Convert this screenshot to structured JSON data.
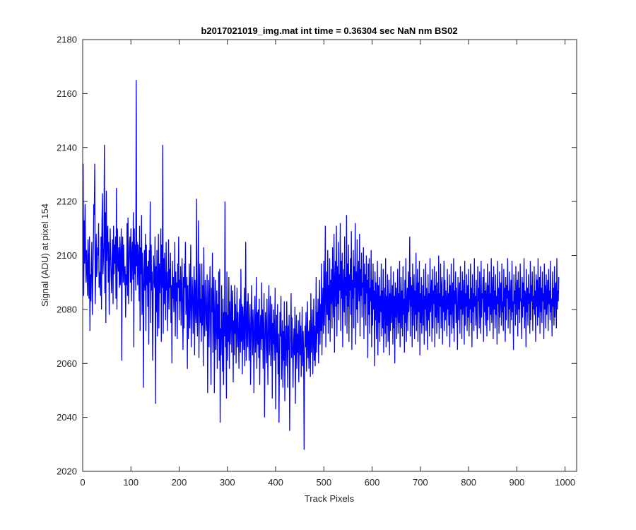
{
  "chart_data": {
    "type": "line",
    "title": "b2017021019_img.mat int time = 0.36304 sec  NaN nm BS02",
    "xlabel": "Track Pixels",
    "ylabel": "Signal (ADU) at pixel 154",
    "xlim": [
      0,
      1024
    ],
    "ylim": [
      2020,
      2180
    ],
    "xticks": [
      0,
      100,
      200,
      300,
      400,
      500,
      600,
      700,
      800,
      900,
      1000
    ],
    "xtick_labels": [
      "0",
      "100",
      "200",
      "300",
      "400",
      "500",
      "600",
      "700",
      "800",
      "900",
      "1000"
    ],
    "yticks": [
      2020,
      2040,
      2060,
      2080,
      2100,
      2120,
      2140,
      2160,
      2180
    ],
    "ytick_labels": [
      "2020",
      "2040",
      "2060",
      "2080",
      "2100",
      "2120",
      "2140",
      "2160",
      "2180"
    ],
    "grid": false,
    "legend": "none",
    "colors": {
      "series": "#0000ff",
      "axes": "#262626",
      "background": "#ffffff"
    },
    "series": [
      {
        "x_start": 1,
        "x_step": 1,
        "values": [
          2134,
          2085,
          2113,
          2097,
          2119,
          2100,
          2090,
          2102,
          2095,
          2085,
          2106,
          2098,
          2084,
          2107,
          2072,
          2093,
          2083,
          2097,
          2105,
          2078,
          2090,
          2101,
          2119,
          2115,
          2134,
          2082,
          2093,
          2108,
          2092,
          2095,
          2103,
          2100,
          2112,
          2088,
          2091,
          2094,
          2085,
          2107,
          2080,
          2113,
          2123,
          2093,
          2098,
          2105,
          2141,
          2086,
          2116,
          2075,
          2124,
          2098,
          2106,
          2111,
          2090,
          2105,
          2078,
          2096,
          2110,
          2100,
          2092,
          2086,
          2099,
          2106,
          2082,
          2111,
          2093,
          2104,
          2097,
          2107,
          2084,
          2125,
          2080,
          2110,
          2098,
          2094,
          2103,
          2088,
          2107,
          2089,
          2098,
          2110,
          2061,
          2102,
          2107,
          2090,
          2104,
          2094,
          2089,
          2096,
          2077,
          2093,
          2089,
          2112,
          2085,
          2114,
          2082,
          2097,
          2104,
          2107,
          2090,
          2110,
          2083,
          2100,
          2105,
          2091,
          2116,
          2066,
          2110,
          2093,
          2104,
          2087,
          2165,
          2096,
          2105,
          2089,
          2104,
          2098,
          2083,
          2111,
          2072,
          2103,
          2093,
          2115,
          2078,
          2101,
          2089,
          2051,
          2094,
          2102,
          2087,
          2108,
          2072,
          2104,
          2089,
          2096,
          2081,
          2098,
          2067,
          2102,
          2090,
          2120,
          2075,
          2104,
          2087,
          2094,
          2061,
          2082,
          2100,
          2091,
          2088,
          2107,
          2045,
          2096,
          2079,
          2102,
          2070,
          2089,
          2108,
          2073,
          2097,
          2086,
          2093,
          2110,
          2068,
          2104,
          2088,
          2141,
          2071,
          2099,
          2082,
          2101,
          2088,
          2076,
          2105,
          2087,
          2094,
          2072,
          2087,
          2106,
          2080,
          2095,
          2088,
          2101,
          2075,
          2089,
          2060,
          2098,
          2084,
          2092,
          2079,
          2087,
          2105,
          2070,
          2094,
          2083,
          2090,
          2069,
          2097,
          2088,
          2107,
          2076,
          2091,
          2083,
          2096,
          2074,
          2087,
          2099,
          2079,
          2065,
          2092,
          2073,
          2097,
          2088,
          2105,
          2078,
          2084,
          2092,
          2058,
          2089,
          2069,
          2079,
          2097,
          2073,
          2085,
          2104,
          2066,
          2079,
          2092,
          2084,
          2071,
          2087,
          2096,
          2063,
          2091,
          2081,
          2075,
          2121,
          2079,
          2070,
          2086,
          2113,
          2062,
          2081,
          2097,
          2075,
          2084,
          2068,
          2097,
          2074,
          2089,
          2059,
          2103,
          2080,
          2070,
          2091,
          2084,
          2072,
          2078,
          2093,
          2049,
          2079,
          2091,
          2066,
          2085,
          2096,
          2071,
          2052,
          2088,
          2079,
          2101,
          2064,
          2082,
          2092,
          2049,
          2077,
          2091,
          2065,
          2074,
          2087,
          2058,
          2082,
          2069,
          2094,
          2061,
          2095,
          2038,
          2073,
          2063,
          2089,
          2071,
          2057,
          2084,
          2052,
          2079,
          2070,
          2120,
          2066,
          2079,
          2047,
          2094,
          2061,
          2078,
          2068,
          2092,
          2058,
          2083,
          2067,
          2075,
          2089,
          2064,
          2080,
          2087,
          2053,
          2076,
          2063,
          2089,
          2071,
          2082,
          2060,
          2074,
          2088,
          2066,
          2079,
          2070,
          2058,
          2084,
          2073,
          2064,
          2095,
          2068,
          2082,
          2056,
          2081,
          2074,
          2065,
          2088,
          2059,
          2077,
          2105,
          2061,
          2072,
          2083,
          2066,
          2086,
          2076,
          2061,
          2074,
          2082,
          2052,
          2067,
          2089,
          2074,
          2063,
          2080,
          2071,
          2049,
          2076,
          2085,
          2064,
          2070,
          2092,
          2058,
          2079,
          2067,
          2080,
          2062,
          2084,
          2052,
          2072,
          2078,
          2065,
          2090,
          2069,
          2080,
          2058,
          2073,
          2086,
          2040,
          2066,
          2079,
          2074,
          2060,
          2084,
          2068,
          2052,
          2077,
          2089,
          2063,
          2072,
          2085,
          2059,
          2070,
          2082,
          2047,
          2075,
          2067,
          2080,
          2061,
          2073,
          2088,
          2043,
          2068,
          2078,
          2064,
          2082,
          2056,
          2071,
          2038,
          2063,
          2079,
          2070,
          2085,
          2054,
          2067,
          2076,
          2051,
          2072,
          2061,
          2083,
          2046,
          2067,
          2074,
          2059,
          2083,
          2069,
          2051,
          2074,
          2065,
          2078,
          2035,
          2061,
          2071,
          2086,
          2062,
          2077,
          2068,
          2051,
          2065,
          2073,
          2063,
          2081,
          2045,
          2069,
          2078,
          2058,
          2071,
          2064,
          2076,
          2053,
          2068,
          2079,
          2063,
          2074,
          2055,
          2067,
          2081,
          2059,
          2072,
          2064,
          2028,
          2061,
          2074,
          2066,
          2079,
          2057,
          2069,
          2083,
          2062,
          2072,
          2058,
          2076,
          2068,
          2055,
          2086,
          2064,
          2070,
          2080,
          2056,
          2068,
          2084,
          2061,
          2074,
          2059,
          2070,
          2092,
          2064,
          2079,
          2071,
          2084,
          2060,
          2077,
          2091,
          2067,
          2082,
          2072,
          2097,
          2063,
          2080,
          2088,
          2071,
          2098,
          2074,
          2087,
          2111,
          2066,
          2082,
          2094,
          2078,
          2102,
          2071,
          2089,
          2076,
          2099,
          2068,
          2091,
          2082,
          2095,
          2073,
          2103,
          2085,
          2077,
          2108,
          2064,
          2090,
          2098,
          2081,
          2111,
          2070,
          2096,
          2082,
          2105,
          2076,
          2093,
          2087,
          2112,
          2072,
          2098,
          2084,
          2101,
          2066,
          2089,
          2095,
          2079,
          2107,
          2074,
          2092,
          2085,
          2115,
          2071,
          2097,
          2081,
          2104,
          2068,
          2093,
          2087,
          2099,
          2078,
          2109,
          2065,
          2091,
          2084,
          2102,
          2073,
          2096,
          2088,
          2112,
          2067,
          2094,
          2080,
          2106,
          2075,
          2090,
          2098,
          2083,
          2108,
          2070,
          2095,
          2085,
          2101,
          2077,
          2090,
          2088,
          2103,
          2069,
          2097,
          2082,
          2093,
          2074,
          2100,
          2086,
          2091,
          2062,
          2097,
          2078,
          2099,
          2071,
          2088,
          2083,
          2102,
          2066,
          2091,
          2074,
          2097,
          2080,
          2087,
          2059,
          2094,
          2076,
          2090,
          2069,
          2083,
          2098,
          2063,
          2089,
          2075,
          2092,
          2068,
          2085,
          2079,
          2097,
          2070,
          2087,
          2073,
          2095,
          2064,
          2082,
          2088,
          2071,
          2099,
          2066,
          2085,
          2074,
          2093,
          2068,
          2080,
          2091,
          2063,
          2086,
          2072,
          2096,
          2075,
          2081,
          2089,
          2067,
          2094,
          2073,
          2085,
          2060,
          2090,
          2077,
          2088,
          2069,
          2083,
          2095,
          2071,
          2086,
          2075,
          2098,
          2066,
          2081,
          2092,
          2073,
          2087,
          2070,
          2096,
          2078,
          2084,
          2064,
          2091,
          2075,
          2099,
          2068,
          2083,
          2088,
          2072,
          2094,
          2079,
          2086,
          2107,
          2070,
          2092,
          2081,
          2089,
          2066,
          2097,
          2074,
          2085,
          2093,
          2069,
          2087,
          2078,
          2101,
          2072,
          2083,
          2095,
          2068,
          2090,
          2079,
          2098,
          2063,
          2086,
          2075,
          2092,
          2071,
          2081,
          2089,
          2074,
          2095,
          2067,
          2085,
          2080,
          2097,
          2072,
          2088,
          2083,
          2065,
          2093,
          2076,
          2086,
          2070,
          2099,
          2079,
          2084,
          2091,
          2068,
          2095,
          2073,
          2087,
          2082,
          2096,
          2066,
          2089,
          2077,
          2094,
          2071,
          2083,
          2090,
          2075,
          2100,
          2069,
          2086,
          2081,
          2097,
          2073,
          2088,
          2092,
          2067,
          2085,
          2079,
          2098,
          2072,
          2091,
          2076,
          2087,
          2083,
          2070,
          2095,
          2080,
          2086,
          2074,
          2093,
          2066,
          2089,
          2078,
          2097,
          2071,
          2084,
          2090,
          2073,
          2099,
          2068,
          2087,
          2082,
          2094,
          2075,
          2088,
          2079,
          2065,
          2092,
          2076,
          2085,
          2090,
          2071,
          2096,
          2080,
          2087,
          2069,
          2094,
          2078,
          2083,
          2091,
          2067,
          2098,
          2074,
          2086,
          2081,
          2093,
          2072,
          2089,
          2077,
          2095,
          2070,
          2084,
          2080,
          2097,
          2075,
          2088,
          2066,
          2093,
          2079,
          2086,
          2072,
          2099,
          2081,
          2085,
          2074,
          2091,
          2078,
          2069,
          2096,
          2083,
          2088,
          2073,
          2094,
          2080,
          2071,
          2098,
          2077,
          2086,
          2084,
          2092,
          2068,
          2095,
          2079,
          2087,
          2074,
          2090,
          2083,
          2070,
          2097,
          2076,
          2089,
          2081,
          2094,
          2072,
          2086,
          2078,
          2099,
          2075,
          2084,
          2092,
          2069,
          2096,
          2080,
          2087,
          2073,
          2093,
          2078,
          2085,
          2067,
          2098,
          2082,
          2088,
          2071,
          2094,
          2077,
          2086,
          2090,
          2074,
          2097,
          2079,
          2083,
          2072,
          2095,
          2081,
          2088,
          2068,
          2092,
          2076,
          2089,
          2084,
          2099,
          2073,
          2087,
          2080,
          2094,
          2071,
          2085,
          2091,
          2076,
          2098,
          2079,
          2083,
          2065,
          2093,
          2082,
          2087,
          2074,
          2096,
          2078,
          2086,
          2091,
          2070,
          2094,
          2080,
          2088,
          2075,
          2097,
          2083,
          2084,
          2069,
          2092,
          2077,
          2090,
          2081,
          2099,
          2073,
          2087,
          2085,
          2066,
          2095,
          2079,
          2088,
          2074,
          2093,
          2082,
          2086,
          2071,
          2098,
          2076,
          2089,
          2083,
          2094,
          2072,
          2085,
          2080,
          2096,
          2078,
          2087,
          2068,
          2093,
          2081,
          2091,
          2074,
          2099,
          2077,
          2084,
          2092,
          2071,
          2096,
          2079,
          2088,
          2075,
          2094,
          2083,
          2086,
          2069,
          2097,
          2080,
          2089,
          2073,
          2093,
          2078,
          2085,
          2091,
          2072,
          2095,
          2082,
          2087,
          2076,
          2098,
          2079,
          2084,
          2070,
          2094,
          2081,
          2088,
          2074,
          2096,
          2077,
          2086,
          2090,
          2073,
          2099,
          2080,
          2087,
          2083,
          2092
        ]
      }
    ]
  }
}
